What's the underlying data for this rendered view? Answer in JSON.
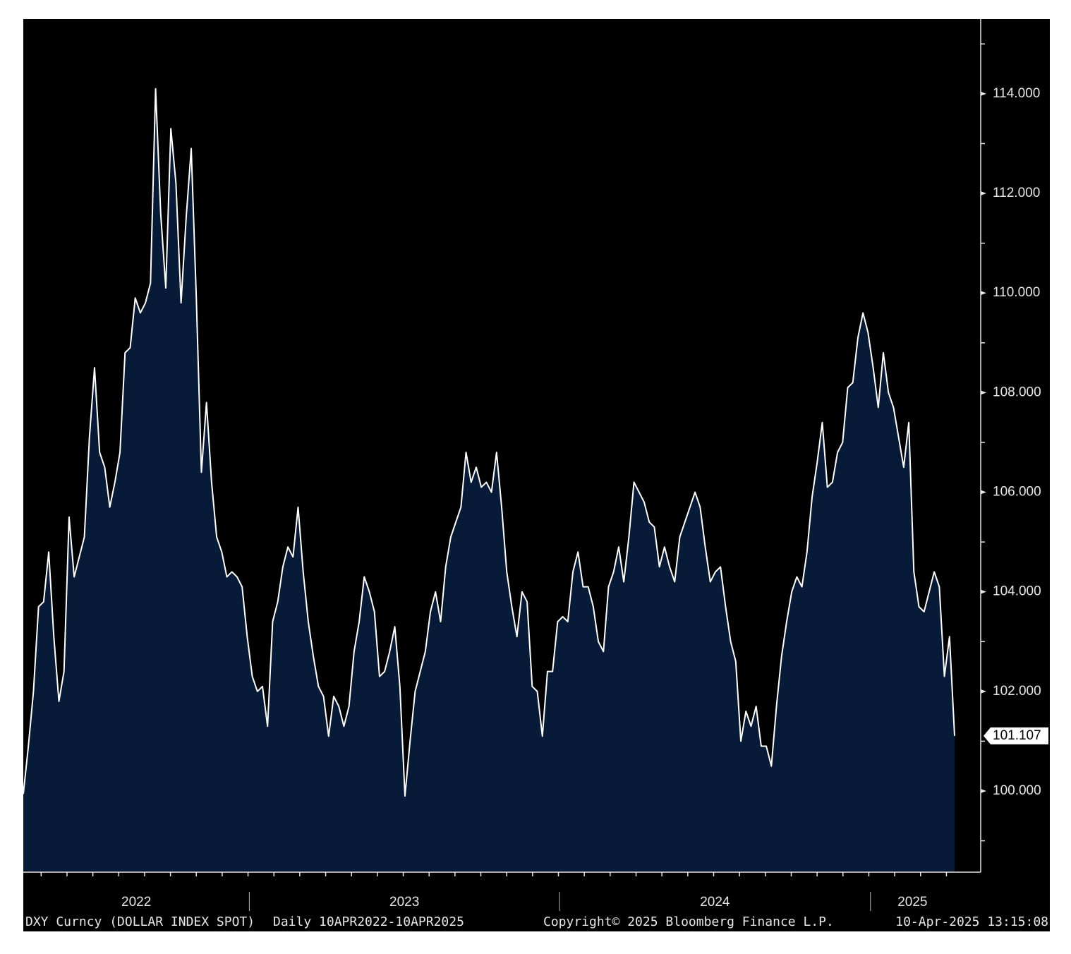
{
  "chart_data": {
    "type": "area",
    "color": "#071a38",
    "line_color": "#ffffff",
    "ylim": [
      98.385,
      115.5
    ],
    "yticks": [
      {
        "value": 100,
        "label": "100.000"
      },
      {
        "value": 102,
        "label": "102.000"
      },
      {
        "value": 104,
        "label": "104.000"
      },
      {
        "value": 106,
        "label": "106.000"
      },
      {
        "value": 108,
        "label": "108.000"
      },
      {
        "value": 110,
        "label": "110.000"
      },
      {
        "value": 112,
        "label": "112.000"
      },
      {
        "value": 114,
        "label": "114.000"
      }
    ],
    "yticks_minor": [
      99,
      101,
      103,
      105,
      107,
      109,
      111,
      113,
      115
    ],
    "x_labels": [
      "2022",
      "2023",
      "2024",
      "2025"
    ],
    "footer": {
      "ticker": "DXY Curncy (DOLLAR INDEX SPOT)",
      "range": "Daily 10APR2022-10APR2025",
      "copyright": "Copyright© 2025 Bloomberg Finance L.P.",
      "timestamp": "10-Apr-2025 13:15:08"
    },
    "values": [
      99.94,
      100.9,
      102.0,
      103.7,
      103.8,
      104.8,
      103.1,
      101.8,
      102.4,
      105.5,
      104.3,
      104.7,
      105.1,
      107.1,
      108.5,
      106.8,
      106.5,
      105.7,
      106.2,
      106.8,
      108.8,
      108.9,
      109.9,
      109.6,
      109.8,
      110.2,
      114.1,
      111.6,
      110.1,
      113.3,
      112.2,
      109.8,
      111.5,
      112.9,
      109.9,
      106.4,
      107.8,
      106.2,
      105.1,
      104.8,
      104.3,
      104.4,
      104.3,
      104.1,
      103.1,
      102.3,
      102.0,
      102.1,
      101.3,
      103.4,
      103.8,
      104.5,
      104.9,
      104.7,
      105.7,
      104.4,
      103.4,
      102.7,
      102.1,
      101.9,
      101.1,
      101.9,
      101.7,
      101.3,
      101.7,
      102.8,
      103.4,
      104.3,
      104.0,
      103.6,
      102.3,
      102.4,
      102.8,
      103.3,
      102.1,
      99.9,
      101.0,
      102.0,
      102.4,
      102.8,
      103.6,
      104.0,
      103.4,
      104.5,
      105.1,
      105.4,
      105.7,
      106.8,
      106.2,
      106.5,
      106.1,
      106.2,
      106.0,
      106.8,
      105.7,
      104.4,
      103.7,
      103.1,
      104.0,
      103.8,
      102.1,
      102.0,
      101.1,
      102.4,
      102.4,
      103.4,
      103.5,
      103.4,
      104.4,
      104.8,
      104.1,
      104.1,
      103.7,
      103.0,
      102.8,
      104.1,
      104.4,
      104.9,
      104.2,
      105.1,
      106.2,
      106.0,
      105.8,
      105.4,
      105.3,
      104.5,
      104.9,
      104.5,
      104.2,
      105.1,
      105.4,
      105.7,
      106.0,
      105.7,
      104.9,
      104.2,
      104.4,
      104.5,
      103.7,
      103.0,
      102.6,
      101.0,
      101.6,
      101.3,
      101.7,
      100.9,
      100.9,
      100.5,
      101.7,
      102.7,
      103.4,
      104.0,
      104.3,
      104.1,
      104.8,
      105.9,
      106.6,
      107.4,
      106.1,
      106.2,
      106.8,
      107.0,
      108.1,
      108.2,
      109.1,
      109.6,
      109.2,
      108.5,
      107.7,
      108.8,
      108.0,
      107.7,
      107.1,
      106.5,
      107.4,
      104.4,
      103.7,
      103.6,
      104.0,
      104.4,
      104.1,
      102.3,
      103.1,
      101.107
    ]
  }
}
